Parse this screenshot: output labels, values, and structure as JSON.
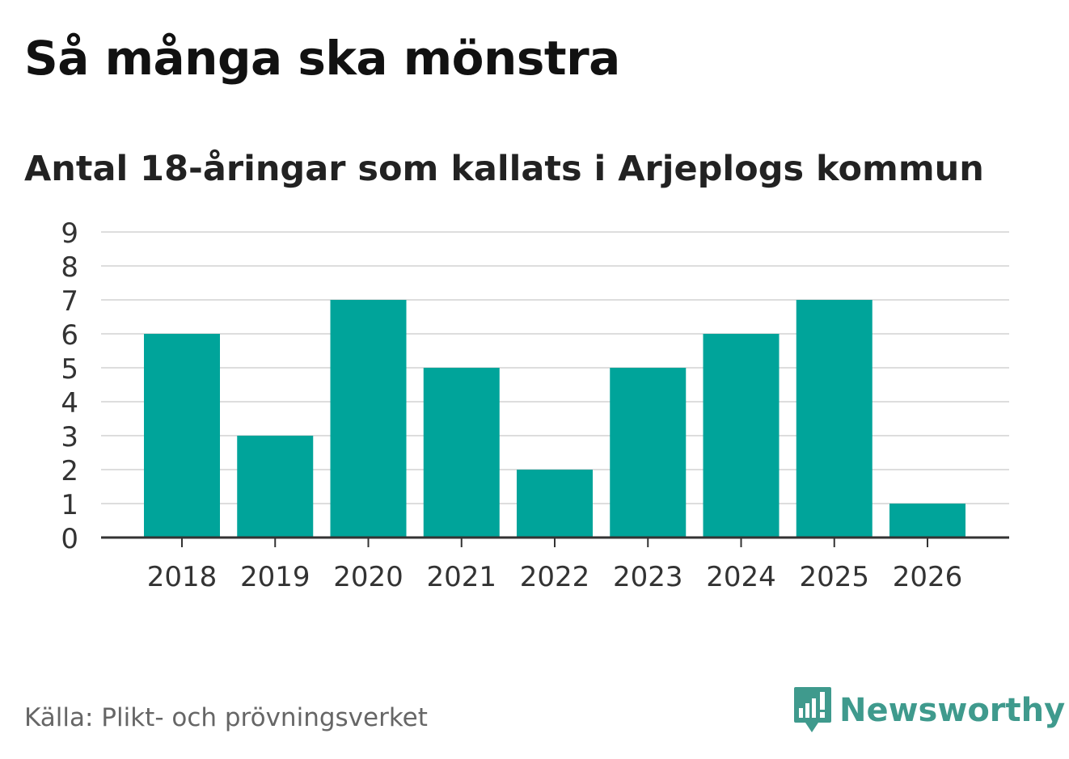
{
  "title": "Så många ska mönstra",
  "subtitle": "Antal 18-åringar som kallats i Arjeplogs kommun",
  "source": "Källa: Plikt- och prövningsverket",
  "brand": "Newsworthy",
  "colors": {
    "bar": "#00a49a",
    "grid": "#dddddd",
    "axis": "#333333",
    "brand": "#3f9a8d"
  },
  "chart_data": {
    "type": "bar",
    "categories": [
      "2018",
      "2019",
      "2020",
      "2021",
      "2022",
      "2023",
      "2024",
      "2025",
      "2026"
    ],
    "values": [
      6,
      3,
      7,
      5,
      2,
      5,
      6,
      7,
      1
    ],
    "yticks": [
      0,
      1,
      2,
      3,
      4,
      5,
      6,
      7,
      8,
      9
    ],
    "ylim": [
      0,
      9
    ],
    "grid": true
  }
}
